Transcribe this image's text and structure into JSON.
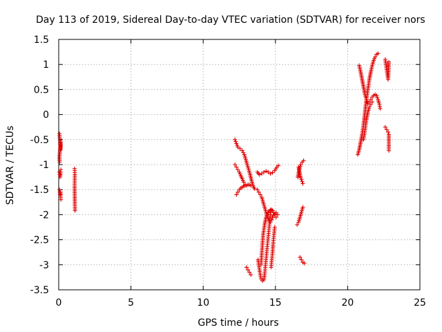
{
  "chart_data": {
    "type": "scatter",
    "title": "Day 113 of 2019, Sidereal Day-to-day VTEC variation (SDTVAR) for receiver nors",
    "xlabel": "GPS time / hours",
    "ylabel": "SDTVAR / TECUs",
    "xlim": [
      0,
      25
    ],
    "ylim": [
      -3.5,
      1.5
    ],
    "xticks": [
      0,
      5,
      10,
      15,
      20,
      25
    ],
    "yticks": [
      -3.5,
      -3,
      -2.5,
      -2,
      -1.5,
      -1,
      -0.5,
      0,
      0.5,
      1,
      1.5
    ],
    "xtick_labels": [
      "0",
      "5",
      "10",
      "15",
      "20",
      "25"
    ],
    "ytick_labels": [
      "-3.5",
      "-3",
      "-2.5",
      "-2",
      "-1.5",
      "-1",
      "-0.5",
      "0",
      "0.5",
      "1",
      "1.5"
    ],
    "grid": true,
    "marker": "+",
    "point_color": "#e00000",
    "series": [
      {
        "segments": [
          [
            [
              0.05,
              -0.38
            ],
            [
              0.07,
              -0.45
            ],
            [
              0.09,
              -0.52
            ],
            [
              0.11,
              -0.6
            ],
            [
              0.13,
              -0.7
            ],
            [
              0.15,
              -0.55
            ],
            [
              0.05,
              -0.85
            ],
            [
              0.07,
              -0.95
            ]
          ],
          [
            [
              0.05,
              -1.15
            ],
            [
              0.07,
              -1.2
            ],
            [
              0.09,
              -1.25
            ],
            [
              0.11,
              -1.22
            ],
            [
              0.13,
              -1.15
            ],
            [
              0.15,
              -1.1
            ]
          ],
          [
            [
              0.05,
              -1.5
            ],
            [
              0.07,
              -1.55
            ],
            [
              0.09,
              -1.6
            ],
            [
              0.11,
              -1.58
            ],
            [
              0.13,
              -1.55
            ],
            [
              0.15,
              -1.7
            ]
          ],
          [
            [
              1.1,
              -1.08
            ],
            [
              1.12,
              -1.2
            ],
            [
              1.1,
              -1.43
            ],
            [
              1.12,
              -1.82
            ],
            [
              1.13,
              -1.92
            ]
          ],
          [
            [
              12.2,
              -0.5
            ],
            [
              12.3,
              -0.58
            ],
            [
              12.4,
              -0.65
            ],
            [
              12.55,
              -0.68
            ],
            [
              12.7,
              -0.72
            ],
            [
              12.85,
              -0.8
            ],
            [
              12.95,
              -0.9
            ],
            [
              13.05,
              -1.0
            ],
            [
              13.15,
              -1.1
            ],
            [
              13.25,
              -1.2
            ],
            [
              13.35,
              -1.32
            ],
            [
              13.45,
              -1.42
            ],
            [
              13.55,
              -1.48
            ]
          ],
          [
            [
              12.2,
              -1.0
            ],
            [
              12.3,
              -1.05
            ],
            [
              12.4,
              -1.1
            ],
            [
              12.5,
              -1.15
            ],
            [
              12.6,
              -1.22
            ],
            [
              12.7,
              -1.28
            ],
            [
              12.8,
              -1.35
            ],
            [
              12.9,
              -1.4
            ],
            [
              13.0,
              -1.42
            ]
          ],
          [
            [
              12.3,
              -1.6
            ],
            [
              12.4,
              -1.55
            ],
            [
              12.5,
              -1.5
            ],
            [
              12.6,
              -1.47
            ],
            [
              12.7,
              -1.45
            ],
            [
              12.8,
              -1.43
            ],
            [
              12.9,
              -1.42
            ],
            [
              13.0,
              -1.42
            ],
            [
              13.1,
              -1.4
            ],
            [
              13.2,
              -1.4
            ],
            [
              13.3,
              -1.42
            ]
          ],
          [
            [
              13.0,
              -3.05
            ],
            [
              13.1,
              -3.1
            ],
            [
              13.2,
              -3.15
            ],
            [
              13.3,
              -3.2
            ]
          ],
          [
            [
              13.75,
              -1.15
            ],
            [
              13.9,
              -1.2
            ],
            [
              14.05,
              -1.18
            ],
            [
              14.2,
              -1.15
            ],
            [
              14.35,
              -1.13
            ],
            [
              14.5,
              -1.15
            ],
            [
              14.65,
              -1.18
            ],
            [
              14.8,
              -1.16
            ],
            [
              14.95,
              -1.12
            ],
            [
              15.1,
              -1.05
            ],
            [
              15.2,
              -1.02
            ]
          ],
          [
            [
              13.75,
              -1.5
            ],
            [
              13.85,
              -1.55
            ],
            [
              13.95,
              -1.6
            ],
            [
              14.05,
              -1.65
            ],
            [
              14.15,
              -1.75
            ],
            [
              14.25,
              -1.85
            ],
            [
              14.35,
              -1.95
            ],
            [
              14.45,
              -2.05
            ],
            [
              14.55,
              -2.12
            ],
            [
              14.65,
              -2.15
            ],
            [
              14.75,
              -2.1
            ],
            [
              14.85,
              -2.02
            ],
            [
              14.95,
              -1.98
            ],
            [
              15.05,
              -1.96
            ]
          ],
          [
            [
              13.8,
              -2.9
            ],
            [
              13.85,
              -3.0
            ],
            [
              13.9,
              -3.1
            ],
            [
              13.95,
              -3.2
            ],
            [
              14.0,
              -3.28
            ],
            [
              14.1,
              -3.32
            ],
            [
              14.2,
              -3.3
            ],
            [
              14.25,
              -3.2
            ],
            [
              14.3,
              -3.05
            ],
            [
              14.35,
              -2.9
            ],
            [
              14.4,
              -2.75
            ],
            [
              14.45,
              -2.6
            ],
            [
              14.5,
              -2.45
            ],
            [
              14.55,
              -2.3
            ],
            [
              14.6,
              -2.15
            ],
            [
              14.65,
              -2.0
            ],
            [
              14.7,
              -1.92
            ],
            [
              14.75,
              -1.9
            ]
          ],
          [
            [
              14.0,
              -3.0
            ],
            [
              14.05,
              -2.8
            ],
            [
              14.1,
              -2.6
            ],
            [
              14.15,
              -2.4
            ],
            [
              14.25,
              -2.2
            ],
            [
              14.35,
              -2.05
            ],
            [
              14.5,
              -1.95
            ],
            [
              14.65,
              -1.9
            ],
            [
              14.8,
              -1.92
            ],
            [
              14.95,
              -2.0
            ],
            [
              15.05,
              -2.05
            ],
            [
              15.15,
              -2.0
            ]
          ],
          [
            [
              14.7,
              -3.05
            ],
            [
              14.75,
              -2.9
            ],
            [
              14.8,
              -2.75
            ],
            [
              14.85,
              -2.55
            ],
            [
              14.9,
              -2.4
            ],
            [
              14.95,
              -2.25
            ]
          ],
          [
            [
              16.55,
              -1.25
            ],
            [
              16.65,
              -1.1
            ],
            [
              16.75,
              -1.0
            ],
            [
              16.85,
              -0.95
            ],
            [
              16.95,
              -0.92
            ]
          ],
          [
            [
              16.6,
              -1.05
            ],
            [
              16.7,
              -1.2
            ],
            [
              16.8,
              -1.3
            ],
            [
              16.9,
              -1.38
            ]
          ],
          [
            [
              16.5,
              -2.2
            ],
            [
              16.6,
              -2.15
            ],
            [
              16.7,
              -2.05
            ],
            [
              16.8,
              -1.95
            ],
            [
              16.9,
              -1.85
            ]
          ],
          [
            [
              16.7,
              -2.85
            ],
            [
              16.8,
              -2.9
            ],
            [
              16.9,
              -2.95
            ],
            [
              17.0,
              -2.97
            ]
          ],
          [
            [
              20.7,
              -0.8
            ],
            [
              20.8,
              -0.7
            ],
            [
              20.9,
              -0.55
            ],
            [
              21.0,
              -0.4
            ],
            [
              21.1,
              -0.2
            ],
            [
              21.2,
              0.05
            ],
            [
              21.3,
              0.3
            ],
            [
              21.4,
              0.5
            ],
            [
              21.5,
              0.7
            ],
            [
              21.6,
              0.85
            ],
            [
              21.7,
              0.98
            ],
            [
              21.8,
              1.08
            ],
            [
              21.9,
              1.15
            ],
            [
              22.0,
              1.2
            ],
            [
              22.1,
              1.22
            ]
          ],
          [
            [
              20.8,
              0.98
            ],
            [
              20.9,
              0.85
            ],
            [
              21.0,
              0.7
            ],
            [
              21.1,
              0.55
            ],
            [
              21.2,
              0.4
            ],
            [
              21.3,
              0.3
            ],
            [
              21.4,
              0.22
            ],
            [
              21.5,
              0.25
            ],
            [
              21.6,
              0.3
            ],
            [
              21.7,
              0.35
            ],
            [
              21.8,
              0.38
            ],
            [
              21.9,
              0.4
            ],
            [
              22.0,
              0.38
            ],
            [
              22.1,
              0.3
            ],
            [
              22.2,
              0.2
            ],
            [
              22.25,
              0.12
            ]
          ],
          [
            [
              21.1,
              -0.5
            ],
            [
              21.2,
              -0.3
            ],
            [
              21.3,
              -0.1
            ],
            [
              21.4,
              0.05
            ],
            [
              21.5,
              0.15
            ],
            [
              21.6,
              0.2
            ],
            [
              21.7,
              0.25
            ]
          ],
          [
            [
              22.6,
              1.1
            ],
            [
              22.65,
              1.0
            ],
            [
              22.7,
              0.9
            ],
            [
              22.75,
              0.8
            ],
            [
              22.8,
              0.7
            ],
            [
              22.85,
              1.05
            ]
          ],
          [
            [
              22.6,
              -0.25
            ],
            [
              22.7,
              -0.3
            ],
            [
              22.8,
              -0.35
            ],
            [
              22.85,
              -0.4
            ],
            [
              22.85,
              -0.65
            ],
            [
              22.85,
              -0.72
            ]
          ]
        ]
      }
    ]
  }
}
